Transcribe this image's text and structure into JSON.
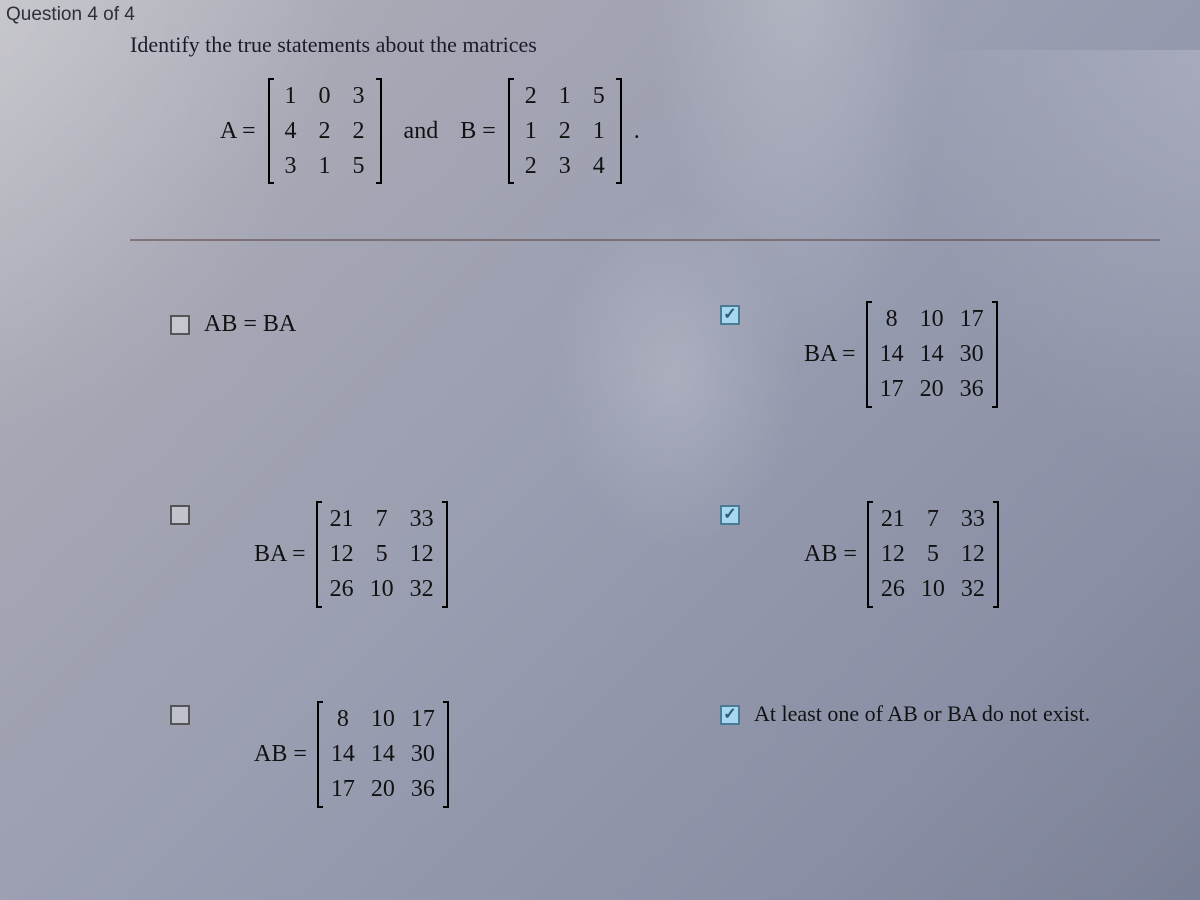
{
  "header": {
    "question_label": "Question 4 of 4"
  },
  "prompt": "Identify the true statements about the matrices",
  "given": {
    "A_label": "A =",
    "A": [
      [
        "1",
        "0",
        "3"
      ],
      [
        "4",
        "2",
        "2"
      ],
      [
        "3",
        "1",
        "5"
      ]
    ],
    "and": "and",
    "B_label": "B =",
    "B": [
      [
        "2",
        "1",
        "5"
      ],
      [
        "1",
        "2",
        "1"
      ],
      [
        "2",
        "3",
        "4"
      ]
    ],
    "period": "."
  },
  "options": {
    "o1": {
      "checked": false,
      "text": "AB = BA"
    },
    "o2": {
      "checked": true,
      "label": "BA =",
      "m": [
        [
          "8",
          "10",
          "17"
        ],
        [
          "14",
          "14",
          "30"
        ],
        [
          "17",
          "20",
          "36"
        ]
      ]
    },
    "o3": {
      "checked": false,
      "label": "BA =",
      "m": [
        [
          "21",
          "7",
          "33"
        ],
        [
          "12",
          "5",
          "12"
        ],
        [
          "26",
          "10",
          "32"
        ]
      ]
    },
    "o4": {
      "checked": true,
      "label": "AB =",
      "m": [
        [
          "21",
          "7",
          "33"
        ],
        [
          "12",
          "5",
          "12"
        ],
        [
          "26",
          "10",
          "32"
        ]
      ]
    },
    "o5": {
      "checked": false,
      "label": "AB =",
      "m": [
        [
          "8",
          "10",
          "17"
        ],
        [
          "14",
          "14",
          "30"
        ],
        [
          "17",
          "20",
          "36"
        ]
      ]
    },
    "o6": {
      "checked": true,
      "text": "At least one of AB or BA do not exist."
    }
  },
  "colors": {
    "text": "#111111",
    "divider": "rgba(90,70,70,0.55)",
    "checkbox_border": "#555555",
    "checkbox_checked_bg": "#a8d8f0"
  }
}
